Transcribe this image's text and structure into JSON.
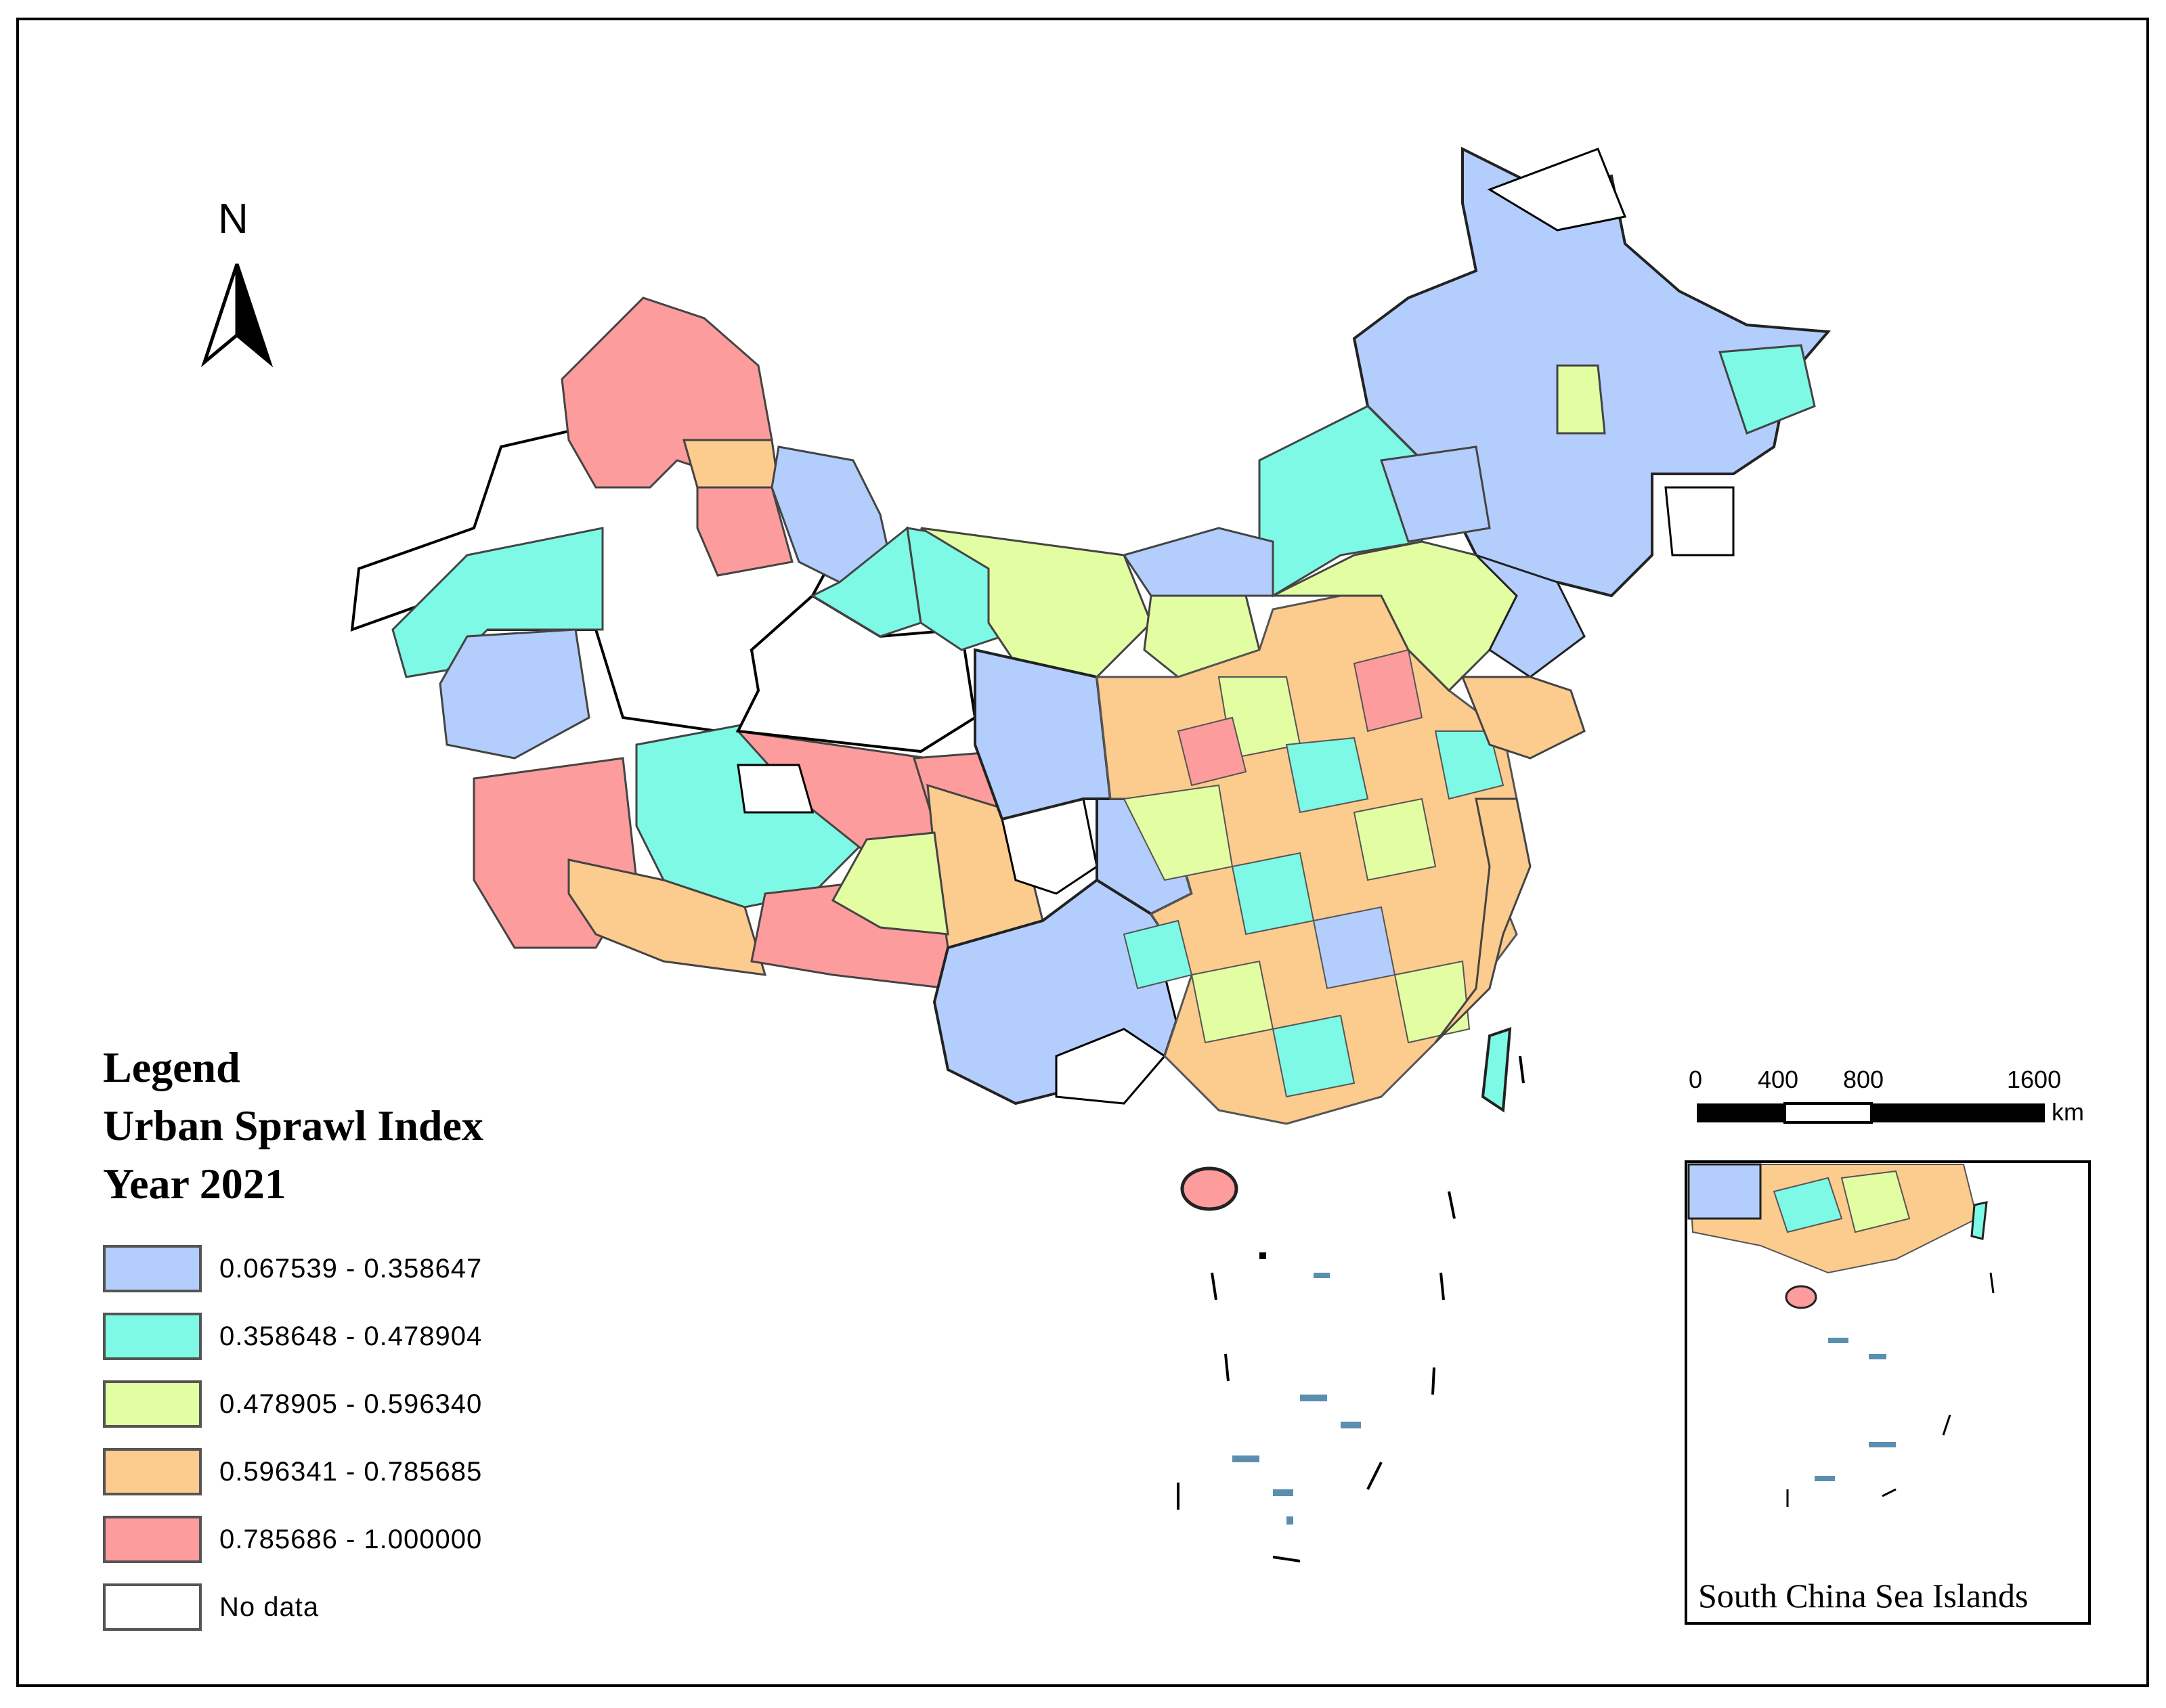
{
  "north_arrow": {
    "label": "N"
  },
  "legend": {
    "title_lines": [
      "Legend",
      "Urban Sprawl Index",
      "Year 2021"
    ],
    "classes": [
      {
        "label": "0.067539 - 0.358647",
        "color": "#b3cdfd"
      },
      {
        "label": "0.358648 - 0.478904",
        "color": "#7ef9e5"
      },
      {
        "label": "0.478905 - 0.596340",
        "color": "#e3fda3"
      },
      {
        "label": "0.596341 - 0.785685",
        "color": "#fccb8e"
      },
      {
        "label": "0.785686 - 1.000000",
        "color": "#fd9c9c"
      },
      {
        "label": "No data",
        "color": "#ffffff"
      }
    ]
  },
  "scale_bar": {
    "ticks": [
      "0",
      "400",
      "800",
      "1600"
    ],
    "unit": "km"
  },
  "inset": {
    "caption": "South China Sea Islands"
  }
}
